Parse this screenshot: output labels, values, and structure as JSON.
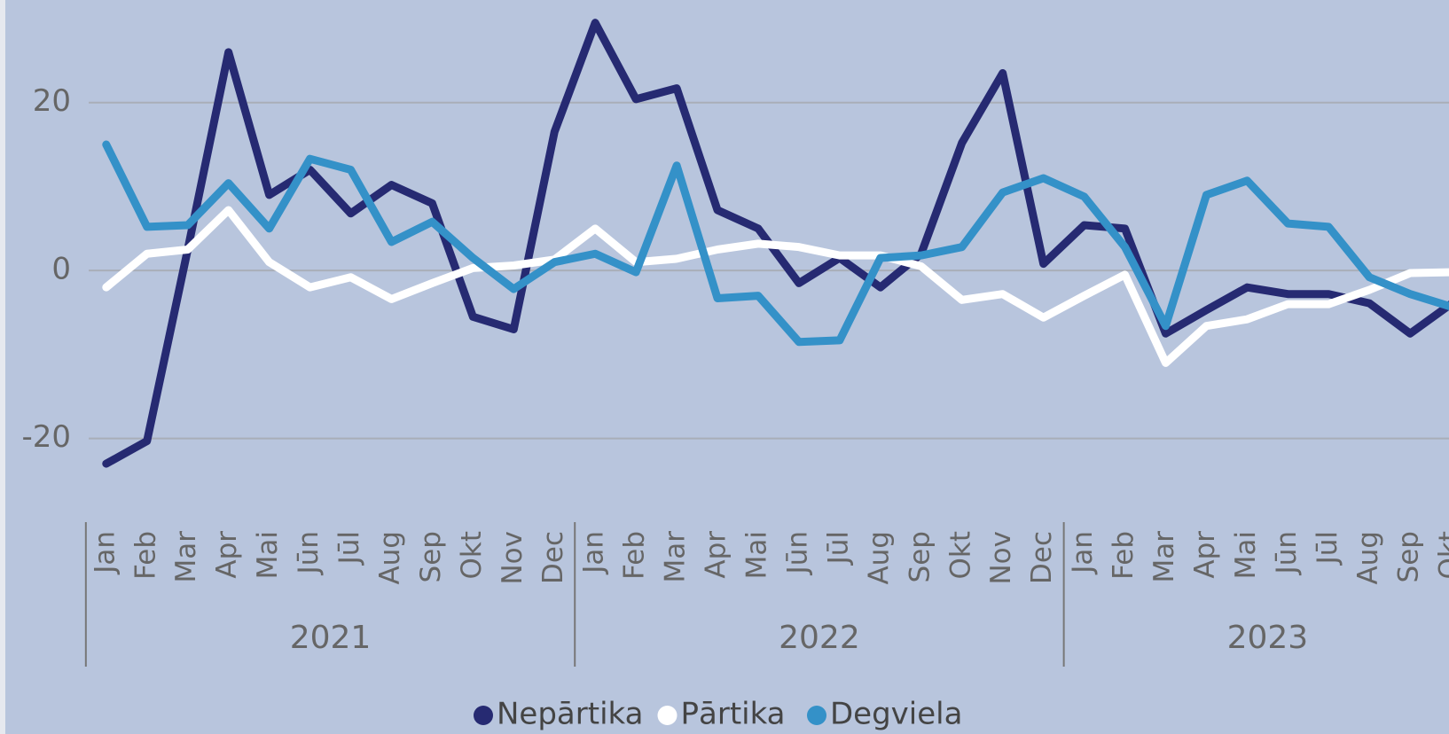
{
  "chart_data": {
    "type": "line",
    "groups": [
      {
        "label": "2021",
        "categories": [
          "Jan",
          "Feb",
          "Mar",
          "Apr",
          "Mai",
          "Jūn",
          "Jūl",
          "Aug",
          "Sep",
          "Okt",
          "Nov",
          "Dec"
        ]
      },
      {
        "label": "2022",
        "categories": [
          "Jan",
          "Feb",
          "Mar",
          "Apr",
          "Mai",
          "Jūn",
          "Jūl",
          "Aug",
          "Sep",
          "Okt",
          "Nov",
          "Dec"
        ]
      },
      {
        "label": "2023",
        "categories": [
          "Jan",
          "Feb",
          "Mar",
          "Apr",
          "Mai",
          "Jūn",
          "Jūl",
          "Aug",
          "Sep",
          "Okt"
        ]
      }
    ],
    "series": [
      {
        "name": "Nepārtika",
        "color": "#262a72",
        "values": [
          -23,
          -20.3,
          2.5,
          26,
          9,
          12,
          6.8,
          10.2,
          8,
          -5.5,
          -7,
          16.5,
          29.5,
          20.4,
          21.7,
          7.2,
          5,
          -1.5,
          1.5,
          -2,
          2,
          15.2,
          23.5,
          0.8,
          5.4,
          5,
          -7.5,
          -4.7,
          -2,
          -2.8,
          -2.8,
          -3.9,
          -7.5,
          -4
        ]
      },
      {
        "name": "Pārtika",
        "color": "#ffffff",
        "values": [
          -2,
          2,
          2.5,
          7.2,
          1,
          -2,
          -0.8,
          -3.4,
          -1.5,
          0.3,
          0.6,
          1.3,
          5,
          1,
          1.4,
          2.5,
          3.2,
          2.8,
          1.8,
          1.8,
          0.5,
          -3.5,
          -2.8,
          -5.6,
          -3,
          -0.5,
          -11,
          -6.6,
          -5.8,
          -4,
          -4,
          -2.3,
          -0.3,
          -0.2
        ]
      },
      {
        "name": "Degviela",
        "color": "#3491c8",
        "values": [
          15,
          5.2,
          5.4,
          10.4,
          5,
          13.3,
          12,
          3.4,
          5.8,
          1.5,
          -2.2,
          1,
          2,
          -0.2,
          12.5,
          -3.3,
          -3,
          -8.5,
          -8.3,
          1.5,
          1.8,
          2.8,
          9.3,
          11,
          8.8,
          2.8,
          -6.6,
          9,
          10.7,
          5.6,
          5.2,
          -0.8,
          -2.8,
          -4.3
        ]
      }
    ],
    "ylim": [
      -27,
      32
    ],
    "yticks": [
      -20,
      0,
      20
    ],
    "grid": true,
    "legend": "bottom"
  }
}
